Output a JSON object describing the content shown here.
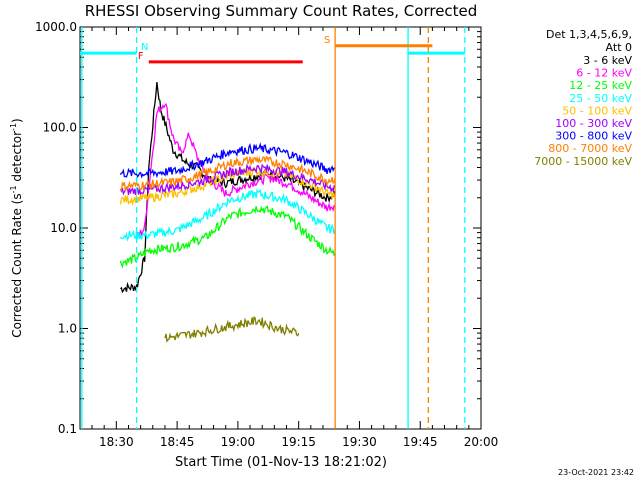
{
  "chart_data": {
    "type": "line",
    "title": "RHESSI Observing Summary Count Rates, Corrected",
    "xlabel": "Start Time (01-Nov-13 18:21:02)",
    "ylabel_main": "Corrected Count Rate (s",
    "ylabel_sup": "-1",
    "ylabel_tail": " detector",
    "ylabel_sup2": "-1",
    "ylabel_end": ")",
    "y_scale": "log",
    "ylim": [
      0.1,
      1000
    ],
    "xlim": [
      "18:21:02",
      "20:00:00"
    ],
    "x_ticks": [
      "18:30",
      "18:45",
      "19:00",
      "19:15",
      "19:30",
      "19:45",
      "20:00"
    ],
    "y_ticks": [
      "0.1",
      "1.0",
      "10.0",
      "100.0",
      "1000.0"
    ],
    "legend_header": [
      "Det 1,3,4,5,6,9,",
      "Att 0"
    ],
    "legend_position": "top-right, outside plot",
    "series": [
      {
        "name": "3 - 6 keV",
        "color": "#000000",
        "points": [
          [
            "18:31",
            2.5
          ],
          [
            "18:35",
            2.6
          ],
          [
            "18:37",
            5
          ],
          [
            "18:38",
            40
          ],
          [
            "18:40",
            280
          ],
          [
            "18:41",
            150
          ],
          [
            "18:44",
            60
          ],
          [
            "18:47",
            45
          ],
          [
            "18:50",
            40
          ],
          [
            "18:53",
            30
          ],
          [
            "18:57",
            28
          ],
          [
            "19:03",
            32
          ],
          [
            "19:08",
            35
          ],
          [
            "19:13",
            30
          ],
          [
            "19:18",
            24
          ],
          [
            "19:22",
            20
          ],
          [
            "19:24",
            22
          ]
        ]
      },
      {
        "name": "6 - 12 keV",
        "color": "#ff00ff",
        "points": [
          [
            "18:35",
            8
          ],
          [
            "18:37",
            10
          ],
          [
            "18:38",
            25
          ],
          [
            "18:40",
            140
          ],
          [
            "18:42",
            180
          ],
          [
            "18:44",
            80
          ],
          [
            "18:46",
            55
          ],
          [
            "18:48",
            85
          ],
          [
            "18:50",
            50
          ],
          [
            "18:53",
            30
          ],
          [
            "18:57",
            22
          ],
          [
            "19:03",
            28
          ],
          [
            "19:08",
            32
          ],
          [
            "19:13",
            27
          ],
          [
            "19:18",
            20
          ],
          [
            "19:22",
            16
          ],
          [
            "19:24",
            17
          ]
        ]
      },
      {
        "name": "12 - 25 keV",
        "color": "#00ff00",
        "points": [
          [
            "18:31",
            4.5
          ],
          [
            "18:35",
            5
          ],
          [
            "18:38",
            6
          ],
          [
            "18:45",
            6.5
          ],
          [
            "18:52",
            8
          ],
          [
            "18:58",
            13
          ],
          [
            "19:05",
            16
          ],
          [
            "19:12",
            13
          ],
          [
            "19:18",
            8
          ],
          [
            "19:22",
            6
          ],
          [
            "19:24",
            5.5
          ]
        ]
      },
      {
        "name": "25 - 50 keV",
        "color": "#00ffff",
        "points": [
          [
            "18:31",
            8.5
          ],
          [
            "18:38",
            8.5
          ],
          [
            "18:45",
            9.5
          ],
          [
            "18:52",
            13
          ],
          [
            "18:58",
            19
          ],
          [
            "19:05",
            22
          ],
          [
            "19:12",
            19
          ],
          [
            "19:18",
            13
          ],
          [
            "19:22",
            10
          ],
          [
            "19:24",
            9.5
          ]
        ]
      },
      {
        "name": "50 - 100 keV",
        "color": "#ffc000",
        "points": [
          [
            "18:31",
            19
          ],
          [
            "18:38",
            20
          ],
          [
            "18:45",
            22
          ],
          [
            "18:52",
            27
          ],
          [
            "18:58",
            34
          ],
          [
            "19:05",
            37
          ],
          [
            "19:12",
            34
          ],
          [
            "19:18",
            27
          ],
          [
            "19:22",
            22
          ],
          [
            "19:24",
            21
          ]
        ]
      },
      {
        "name": "100 - 300 keV",
        "color": "#a000ff",
        "points": [
          [
            "18:31",
            23
          ],
          [
            "18:38",
            24
          ],
          [
            "18:45",
            26
          ],
          [
            "18:52",
            30
          ],
          [
            "18:58",
            36
          ],
          [
            "19:05",
            40
          ],
          [
            "19:12",
            36
          ],
          [
            "19:18",
            30
          ],
          [
            "19:22",
            26
          ],
          [
            "19:24",
            25
          ]
        ]
      },
      {
        "name": "300 - 800 keV",
        "color": "#0000ff",
        "points": [
          [
            "18:31",
            35
          ],
          [
            "18:38",
            35
          ],
          [
            "18:45",
            37
          ],
          [
            "18:52",
            46
          ],
          [
            "18:58",
            58
          ],
          [
            "19:05",
            62
          ],
          [
            "19:12",
            56
          ],
          [
            "19:18",
            45
          ],
          [
            "19:22",
            38
          ],
          [
            "19:24",
            40
          ]
        ]
      },
      {
        "name": "800 - 7000 keV",
        "color": "#ff8000",
        "points": [
          [
            "18:31",
            26
          ],
          [
            "18:38",
            27
          ],
          [
            "18:45",
            29
          ],
          [
            "18:52",
            35
          ],
          [
            "18:58",
            44
          ],
          [
            "19:05",
            48
          ],
          [
            "19:12",
            43
          ],
          [
            "19:18",
            35
          ],
          [
            "19:22",
            30
          ],
          [
            "19:24",
            31
          ]
        ]
      },
      {
        "name": "7000 - 15000 keV",
        "color": "#808000",
        "points": [
          [
            "18:42",
            0.8
          ],
          [
            "18:50",
            0.9
          ],
          [
            "18:55",
            1.0
          ],
          [
            "19:05",
            1.2
          ],
          [
            "19:10",
            1.0
          ],
          [
            "19:15",
            0.9
          ]
        ]
      }
    ],
    "hessi_flags": [
      {
        "label": "F",
        "color": "#ff0000",
        "start": "18:38",
        "end": "19:16",
        "y_level": 450
      },
      {
        "label": "N",
        "color": "#00ffff",
        "start": "18:21:02",
        "end": "18:35",
        "y_level": 550
      },
      {
        "label": "S",
        "color": "#ff8000",
        "start": "19:24",
        "end": "19:48",
        "y_level": 650
      }
    ],
    "vertical_lines": [
      {
        "time": "18:21:30",
        "color": "#00ffff",
        "style": "solid"
      },
      {
        "time": "18:35",
        "color": "#00ffff",
        "style": "dashed"
      },
      {
        "time": "19:24",
        "color": "#ff8000",
        "style": "solid"
      },
      {
        "time": "19:42",
        "color": "#00ffff",
        "style": "solid"
      },
      {
        "time": "19:47",
        "color": "#ff8000",
        "style": "dashed"
      },
      {
        "time": "19:56",
        "color": "#00ffff",
        "style": "dashed"
      }
    ],
    "extra_cyan_segment": {
      "start": "19:42",
      "end": "19:56",
      "y_level": 550
    },
    "footer_timestamp": "23-Oct-2021 23:42"
  }
}
